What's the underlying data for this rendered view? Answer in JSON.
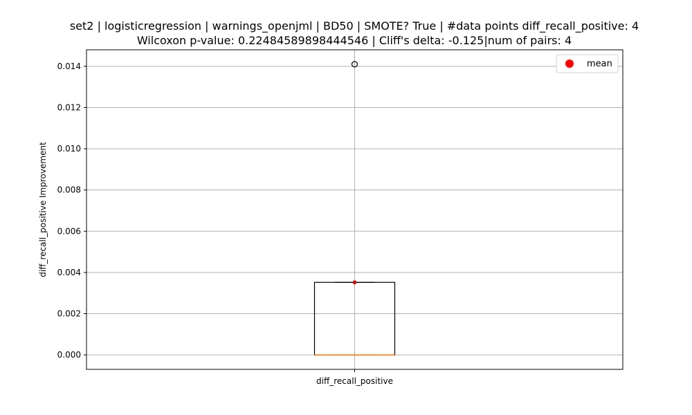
{
  "chart_data": {
    "type": "box",
    "title_line1": "set2 | logisticregression | warnings_openjml | BD50 | SMOTE? True | #data points diff_recall_positive: 4",
    "title_line2": "Wilcoxon p-value: 0.22484589898444546 | Cliff's delta: -0.125|num of pairs: 4",
    "ylabel": "diff_recall_positive Improvement",
    "xlabel": "",
    "categories": [
      "diff_recall_positive"
    ],
    "yticks": [
      "0.000",
      "0.002",
      "0.004",
      "0.006",
      "0.008",
      "0.010",
      "0.012",
      "0.014"
    ],
    "ylim": [
      -0.0007,
      0.0148
    ],
    "grid": true,
    "legend": {
      "placement": "top-right",
      "entries": [
        {
          "label": "mean",
          "color": "#ff0000"
        }
      ]
    },
    "box": {
      "q1": 0.0,
      "median": 0.0,
      "q3": 0.00352,
      "whisker_low": 0.0,
      "whisker_high": 0.00352,
      "mean": 0.00352,
      "outliers": [
        0.0141
      ]
    },
    "colors": {
      "box": "#000000",
      "median": "#ff7f0e",
      "mean": "#ff0000",
      "grid": "#b0b0b0"
    }
  }
}
